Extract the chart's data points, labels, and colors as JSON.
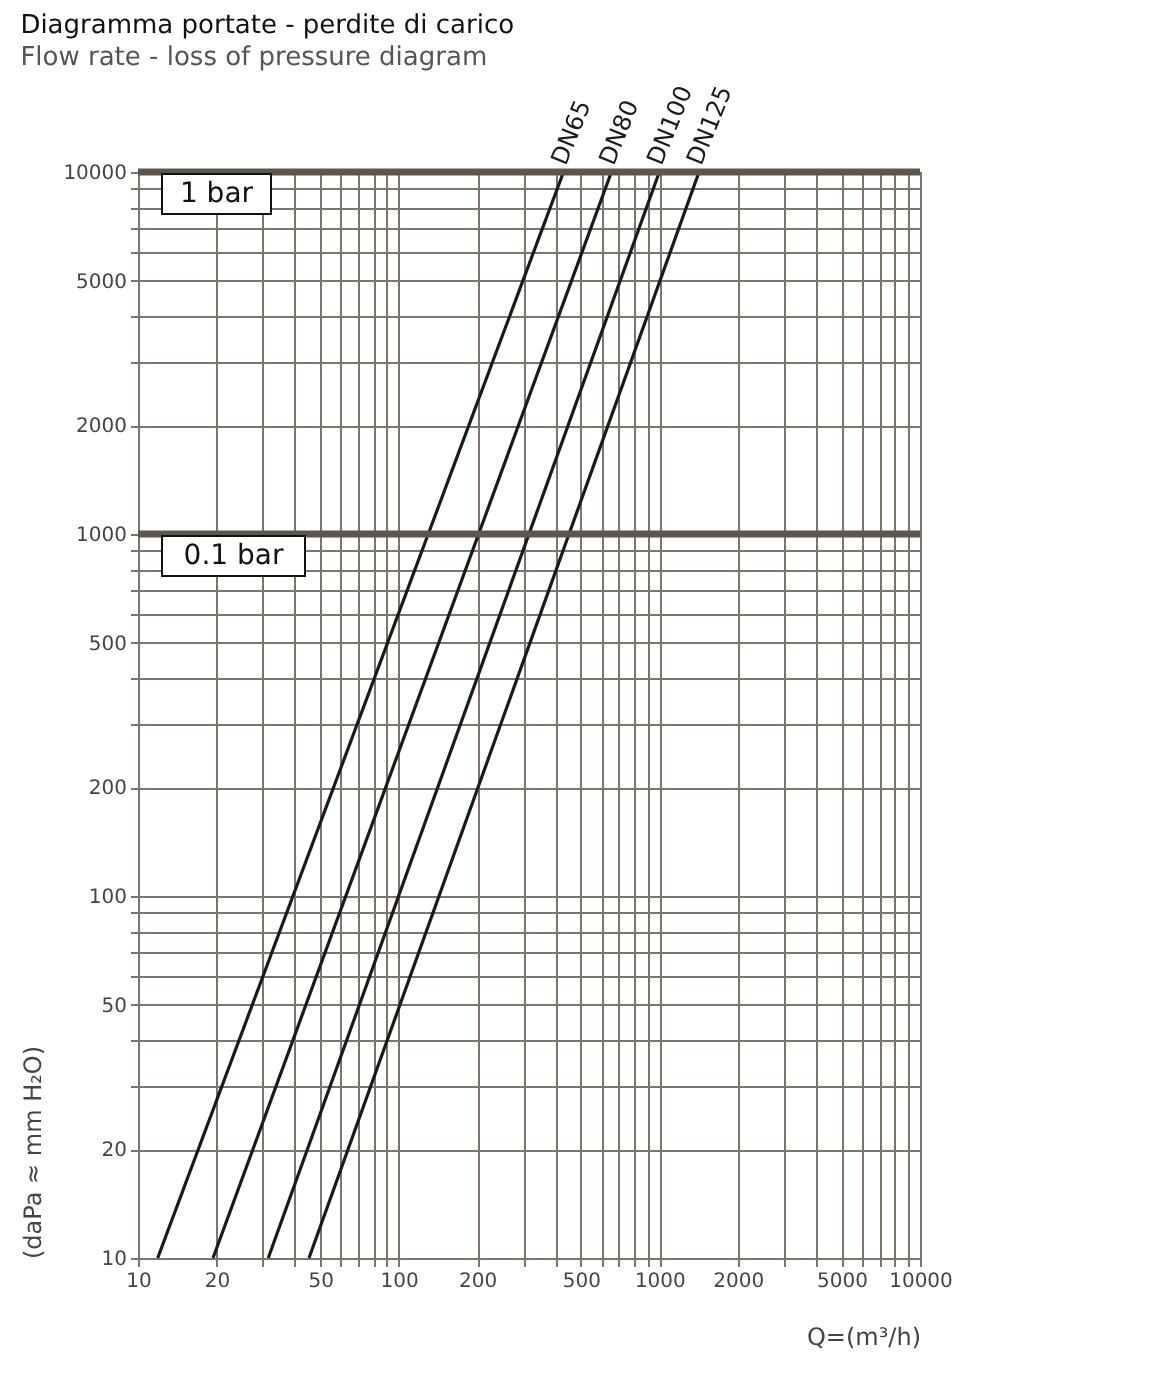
{
  "chart_data": {
    "type": "line",
    "title": "Diagramma portate - perdite di carico",
    "subtitle": "Flow rate - loss of pressure diagram",
    "xlabel": "Q=(m³/h)",
    "ylabel": "(daPa ≈ mm H₂O)",
    "log": "xy",
    "grid": true,
    "xlim": [
      10,
      10000
    ],
    "ylim": [
      10,
      10000
    ],
    "xticks": [
      10,
      20,
      {
        "value": 30,
        "label": null
      },
      {
        "value": 40,
        "label": null
      },
      50,
      {
        "value": 60,
        "label": null
      },
      {
        "value": 70,
        "label": null
      },
      {
        "value": 80,
        "label": null
      },
      {
        "value": 90,
        "label": null
      },
      100,
      200,
      {
        "value": 300,
        "label": null
      },
      {
        "value": 400,
        "label": null
      },
      500,
      {
        "value": 600,
        "label": null
      },
      {
        "value": 700,
        "label": null
      },
      {
        "value": 800,
        "label": null
      },
      {
        "value": 900,
        "label": null
      },
      1000,
      2000,
      {
        "value": 3000,
        "label": null
      },
      {
        "value": 4000,
        "label": null
      },
      5000,
      {
        "value": 6000,
        "label": null
      },
      {
        "value": 7000,
        "label": null
      },
      {
        "value": 8000,
        "label": null
      },
      {
        "value": 9000,
        "label": null
      },
      10000
    ],
    "yticks": [
      10,
      20,
      {
        "value": 30,
        "label": null
      },
      {
        "value": 40,
        "label": null
      },
      50,
      {
        "value": 60,
        "label": null
      },
      {
        "value": 70,
        "label": null
      },
      {
        "value": 80,
        "label": null
      },
      {
        "value": 90,
        "label": null
      },
      100,
      200,
      {
        "value": 300,
        "label": null
      },
      {
        "value": 400,
        "label": null
      },
      500,
      {
        "value": 600,
        "label": null
      },
      {
        "value": 700,
        "label": null
      },
      {
        "value": 800,
        "label": null
      },
      {
        "value": 900,
        "label": null
      },
      1000,
      2000,
      {
        "value": 3000,
        "label": null
      },
      {
        "value": 4000,
        "label": null
      },
      5000,
      {
        "value": 6000,
        "label": null
      },
      {
        "value": 7000,
        "label": null
      },
      {
        "value": 8000,
        "label": null
      },
      {
        "value": 9000,
        "label": null
      },
      10000
    ],
    "series": [
      {
        "name": "DN65",
        "color": "#1a1a1a",
        "x": [
          11.9,
          429
        ],
        "values": [
          10,
          10000
        ]
      },
      {
        "name": "DN80",
        "color": "#1a1a1a",
        "x": [
          19.4,
          655
        ],
        "values": [
          10,
          10000
        ]
      },
      {
        "name": "DN100",
        "color": "#1a1a1a",
        "x": [
          31.6,
          1000
        ],
        "values": [
          10,
          10000
        ]
      },
      {
        "name": "DN125",
        "color": "#1a1a1a",
        "x": [
          45.3,
          1420
        ],
        "values": [
          10,
          10000
        ]
      }
    ],
    "ref_lines": [
      {
        "axis": "y",
        "value": 10000,
        "label": "1 bar",
        "color": "#5e564d"
      },
      {
        "axis": "y",
        "value": 1000,
        "label": "0.1 bar",
        "color": "#5e564d"
      }
    ]
  }
}
